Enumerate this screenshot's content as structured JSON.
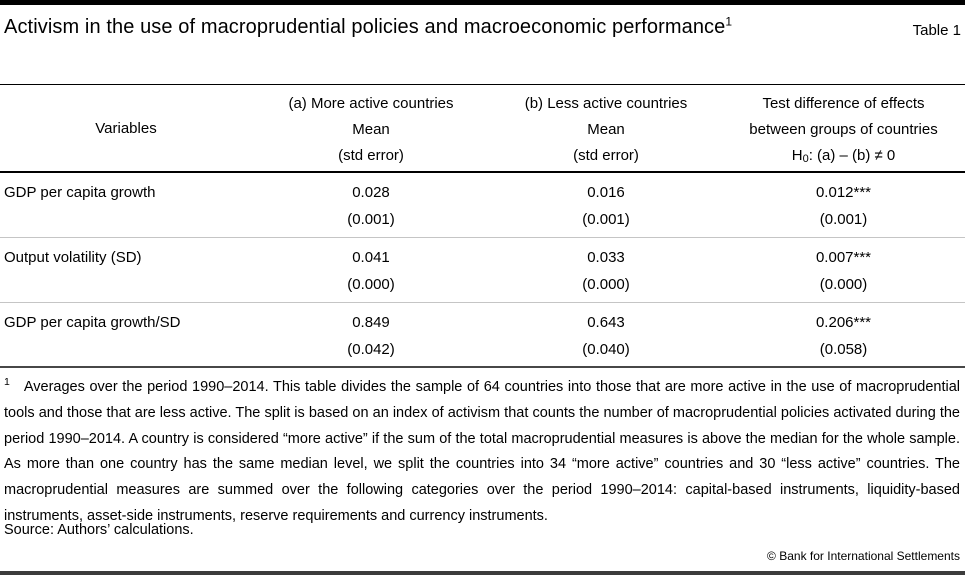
{
  "header": {
    "title": "Activism in the use of macroprudential policies and macroeconomic performance",
    "title_footnote_marker": "1",
    "table_label": "Table 1"
  },
  "table": {
    "variables_header": "Variables",
    "col_a": {
      "title": "(a) More active countries",
      "sub1": "Mean",
      "sub2": "(std error)"
    },
    "col_b": {
      "title": "(b) Less active countries",
      "sub1": "Mean",
      "sub2": "(std error)"
    },
    "col_test": {
      "line1": "Test difference of effects",
      "line2": "between groups of countries",
      "h_prefix": "H",
      "h_sub": "0",
      "h_rest": ": (a) – (b) ≠ 0"
    },
    "rows": [
      {
        "variable": "GDP per capita growth",
        "a_mean": "0.028",
        "a_se": "(0.001)",
        "b_mean": "0.016",
        "b_se": "(0.001)",
        "diff": "0.012***",
        "diff_se": "(0.001)"
      },
      {
        "variable": "Output volatility (SD)",
        "a_mean": "0.041",
        "a_se": "(0.000)",
        "b_mean": "0.033",
        "b_se": "(0.000)",
        "diff": "0.007***",
        "diff_se": "(0.000)"
      },
      {
        "variable": "GDP per capita growth/SD",
        "a_mean": "0.849",
        "a_se": "(0.042)",
        "b_mean": "0.643",
        "b_se": "(0.040)",
        "diff": "0.206***",
        "diff_se": "(0.058)"
      }
    ]
  },
  "footnote": {
    "marker": "1",
    "text": "Averages over the period 1990–2014. This table divides the sample of 64 countries into those that are more active in the use of macroprudential tools and those that are less active. The split is based on an index of activism that counts the number of macroprudential policies activated during the period 1990–2014. A country is considered “more active” if the sum of the total macroprudential measures is above the median for the whole sample. As more than one country has the same median level, we split the countries into 34 “more active” countries and 30 “less active” countries. The macroprudential measures are summed over the following categories over the period 1990–2014: capital-based instruments, liquidity-based instruments, asset-side instruments, reserve requirements and currency instruments."
  },
  "source": "Source: Authors’ calculations.",
  "copyright": "© Bank for International Settlements"
}
